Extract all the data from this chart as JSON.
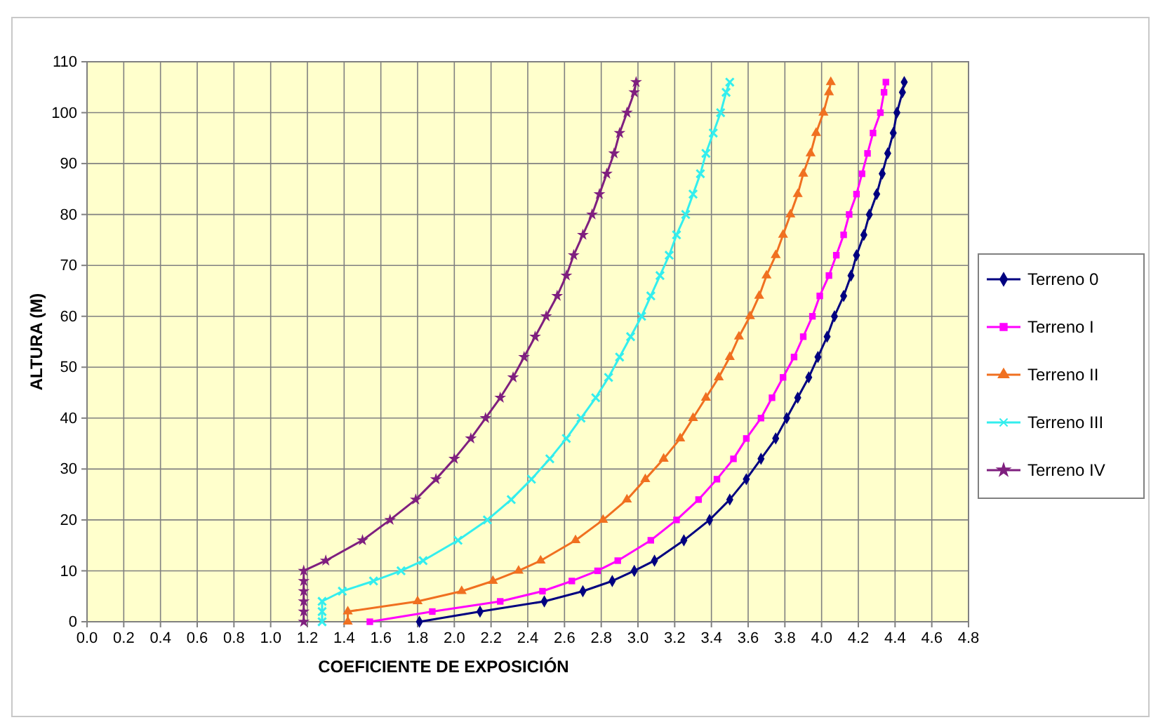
{
  "chart_data": {
    "type": "line",
    "xlabel": "COEFICIENTE DE EXPOSICIÓN",
    "ylabel": "ALTURA (M)",
    "xlim": [
      0,
      4.8
    ],
    "xticks": [
      {
        "value": 0,
        "label": "0.0"
      },
      0.2,
      0.4,
      0.6,
      0.8,
      {
        "value": 1,
        "label": "1.0"
      },
      1.2,
      1.4,
      1.6,
      1.8,
      {
        "value": 2,
        "label": "2.0"
      },
      2.2,
      2.4,
      2.6,
      2.8,
      {
        "value": 3,
        "label": "3.0"
      },
      3.2,
      3.4,
      3.6,
      3.8,
      {
        "value": 4,
        "label": "4.0"
      },
      4.2,
      4.4,
      4.6,
      4.8
    ],
    "ylim": [
      0,
      110
    ],
    "yticks": [
      0,
      10,
      20,
      30,
      40,
      50,
      60,
      70,
      80,
      90,
      100,
      110
    ],
    "grid": true,
    "legend": "right",
    "line_style": "solid",
    "series": [
      {
        "name": "Terreno 0",
        "color": "#000080",
        "marker": "diamond",
        "x": [
          1.81,
          2.14,
          2.49,
          2.7,
          2.86,
          2.98,
          3.09,
          3.25,
          3.39,
          3.5,
          3.59,
          3.67,
          3.75,
          3.81,
          3.87,
          3.93,
          3.98,
          4.03,
          4.07,
          4.12,
          4.16,
          4.19,
          4.23,
          4.26,
          4.3,
          4.33,
          4.36,
          4.39,
          4.41,
          4.44,
          4.45
        ],
        "values": [
          0,
          2,
          4,
          6,
          8,
          10,
          12,
          16,
          20,
          24,
          28,
          32,
          36,
          40,
          44,
          48,
          52,
          56,
          60,
          64,
          68,
          72,
          76,
          80,
          84,
          88,
          92,
          96,
          100,
          104,
          106
        ]
      },
      {
        "name": "Terreno I",
        "color": "#ff00ff",
        "marker": "square",
        "x": [
          1.54,
          1.88,
          2.25,
          2.48,
          2.64,
          2.78,
          2.89,
          3.07,
          3.21,
          3.33,
          3.43,
          3.52,
          3.59,
          3.67,
          3.73,
          3.79,
          3.85,
          3.9,
          3.95,
          3.99,
          4.04,
          4.08,
          4.12,
          4.15,
          4.19,
          4.22,
          4.25,
          4.28,
          4.32,
          4.34,
          4.35
        ],
        "values": [
          0,
          2,
          4,
          6,
          8,
          10,
          12,
          16,
          20,
          24,
          28,
          32,
          36,
          40,
          44,
          48,
          52,
          56,
          60,
          64,
          68,
          72,
          76,
          80,
          84,
          88,
          92,
          96,
          100,
          104,
          106
        ]
      },
      {
        "name": "Terreno II",
        "color": "#f07020",
        "marker": "triangle",
        "x": [
          1.42,
          1.42,
          1.8,
          2.04,
          2.21,
          2.35,
          2.47,
          2.66,
          2.81,
          2.94,
          3.04,
          3.14,
          3.23,
          3.3,
          3.37,
          3.44,
          3.5,
          3.55,
          3.61,
          3.66,
          3.7,
          3.75,
          3.79,
          3.83,
          3.87,
          3.9,
          3.94,
          3.97,
          4.01,
          4.04,
          4.05
        ],
        "values": [
          0,
          2,
          4,
          6,
          8,
          10,
          12,
          16,
          20,
          24,
          28,
          32,
          36,
          40,
          44,
          48,
          52,
          56,
          60,
          64,
          68,
          72,
          76,
          80,
          84,
          88,
          92,
          96,
          100,
          104,
          106
        ]
      },
      {
        "name": "Terreno III",
        "color": "#33eeee",
        "marker": "cross",
        "x": [
          1.28,
          1.28,
          1.28,
          1.39,
          1.56,
          1.71,
          1.83,
          2.02,
          2.18,
          2.31,
          2.42,
          2.52,
          2.61,
          2.69,
          2.77,
          2.84,
          2.9,
          2.96,
          3.02,
          3.07,
          3.12,
          3.17,
          3.21,
          3.26,
          3.3,
          3.34,
          3.37,
          3.41,
          3.45,
          3.48,
          3.5
        ],
        "values": [
          0,
          2,
          4,
          6,
          8,
          10,
          12,
          16,
          20,
          24,
          28,
          32,
          36,
          40,
          44,
          48,
          52,
          56,
          60,
          64,
          68,
          72,
          76,
          80,
          84,
          88,
          92,
          96,
          100,
          104,
          106
        ]
      },
      {
        "name": "Terreno IV",
        "color": "#7f1f7f",
        "marker": "star",
        "x": [
          1.18,
          1.18,
          1.18,
          1.18,
          1.18,
          1.18,
          1.3,
          1.5,
          1.65,
          1.79,
          1.9,
          2.0,
          2.09,
          2.17,
          2.25,
          2.32,
          2.38,
          2.44,
          2.5,
          2.56,
          2.61,
          2.65,
          2.7,
          2.75,
          2.79,
          2.83,
          2.87,
          2.9,
          2.94,
          2.98,
          2.99
        ],
        "values": [
          0,
          2,
          4,
          6,
          8,
          10,
          12,
          16,
          20,
          24,
          28,
          32,
          36,
          40,
          44,
          48,
          52,
          56,
          60,
          64,
          68,
          72,
          76,
          80,
          84,
          88,
          92,
          96,
          100,
          104,
          106
        ]
      }
    ]
  }
}
